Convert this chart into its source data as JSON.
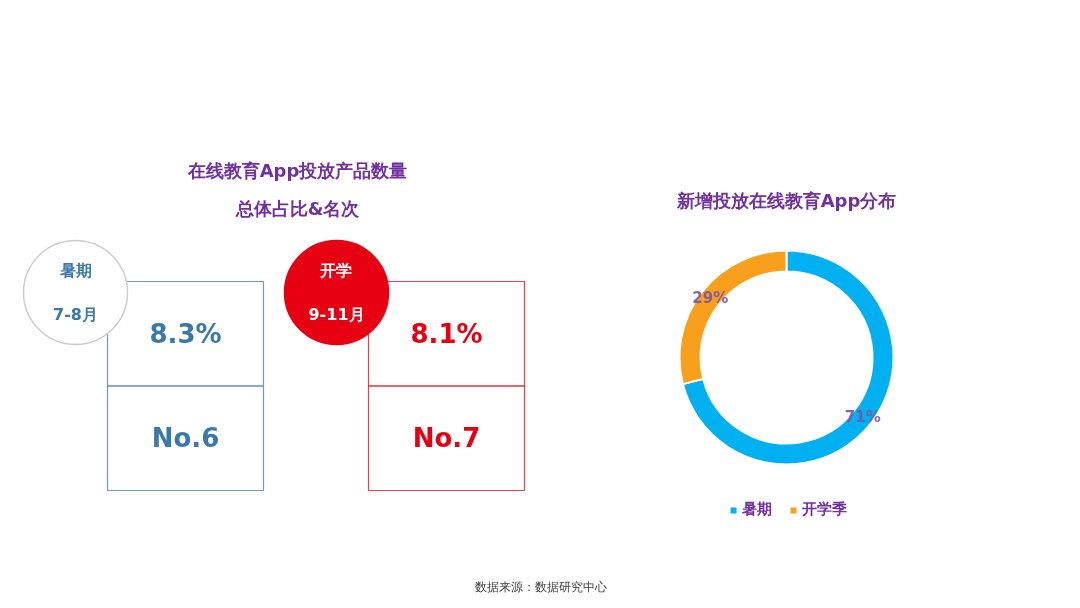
{
  "chart_data": [
    {
      "type": "other",
      "title": "在线教育App投放产品数量总体占比&名次",
      "categories": [
        "暑期\n7-8月",
        "开学\n9-11月"
      ],
      "colors": [
        "#3a78a8",
        "#e60012"
      ],
      "cell_labels": [
        [
          "8.3%",
          "8.1%"
        ],
        [
          "No.6",
          "No.7"
        ]
      ],
      "annotations": [
        "数据来源：数据研究中心"
      ]
    },
    {
      "type": "donut",
      "title": "新增投放在线教育App分布",
      "categories": [
        "暑期",
        "开学季"
      ],
      "values": [
        71,
        29
      ],
      "colors": [
        "#00b0f0",
        "#f8a01b"
      ],
      "value_labels": [
        "71%",
        "29%"
      ],
      "legend": "bottom"
    }
  ]
}
